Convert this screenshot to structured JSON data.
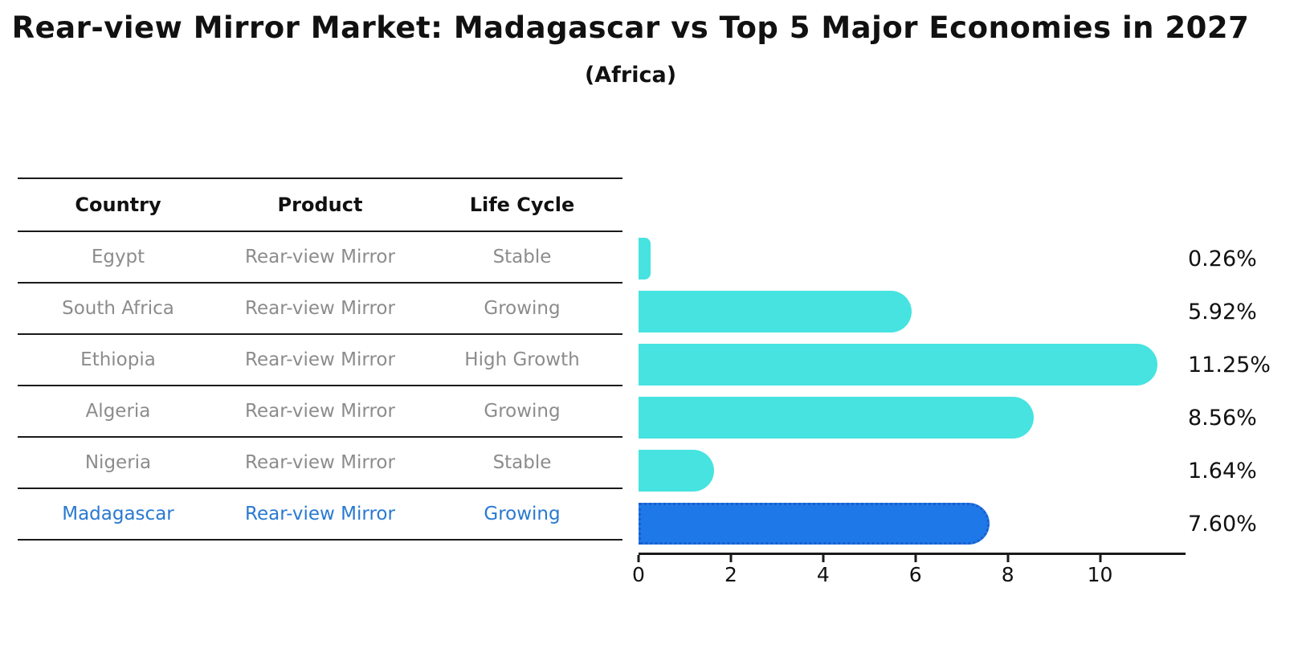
{
  "title": "Rear-view Mirror Market: Madagascar vs Top 5 Major Economies in 2027",
  "subtitle": "(Africa)",
  "table": {
    "headers": {
      "country": "Country",
      "product": "Product",
      "life_cycle": "Life Cycle"
    },
    "rows": [
      {
        "country": "Egypt",
        "product": "Rear-view Mirror",
        "life_cycle": "Stable",
        "highlighted": false
      },
      {
        "country": "South Africa",
        "product": "Rear-view Mirror",
        "life_cycle": "Growing",
        "highlighted": false
      },
      {
        "country": "Ethiopia",
        "product": "Rear-view Mirror",
        "life_cycle": "High Growth",
        "highlighted": false
      },
      {
        "country": "Algeria",
        "product": "Rear-view Mirror",
        "life_cycle": "Growing",
        "highlighted": false
      },
      {
        "country": "Nigeria",
        "product": "Rear-view Mirror",
        "life_cycle": "Stable",
        "highlighted": false
      },
      {
        "country": "Madagascar",
        "product": "Rear-view Mirror",
        "life_cycle": "Growing",
        "highlighted": true
      }
    ]
  },
  "chart_data": {
    "type": "bar",
    "orientation": "horizontal",
    "title": "Rear-view Mirror Market: Madagascar vs Top 5 Major Economies in 2027",
    "subtitle": "(Africa)",
    "categories": [
      "Egypt",
      "South Africa",
      "Ethiopia",
      "Algeria",
      "Nigeria",
      "Madagascar"
    ],
    "values": [
      0.26,
      5.92,
      11.25,
      8.56,
      1.64,
      7.6
    ],
    "value_labels": [
      "0.26%",
      "5.92%",
      "11.25%",
      "8.56%",
      "1.64%",
      "7.60%"
    ],
    "xlabel": "",
    "ylabel": "",
    "xlim": [
      0,
      11.8
    ],
    "x_ticks": [
      0,
      2,
      4,
      6,
      8,
      10
    ],
    "grid": false,
    "legend": false,
    "bar_color": "#46e3e0",
    "highlight_index": 5,
    "highlight_bar_color": "#1f78e8",
    "highlight_bar_border": "#1a5ecc"
  },
  "colors": {
    "text_primary": "#111111",
    "text_muted": "#8c8c8c",
    "highlight_text": "#2979d1",
    "axis": "#1a1a1a"
  }
}
